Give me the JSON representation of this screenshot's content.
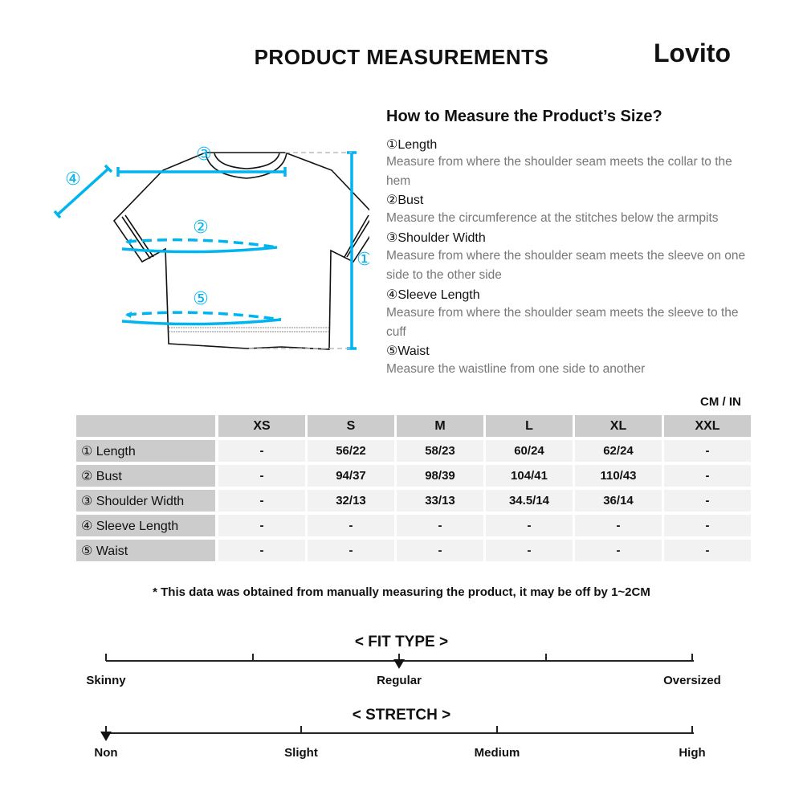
{
  "header": {
    "title": "PRODUCT MEASUREMENTS",
    "logo": "Lovito"
  },
  "guide": {
    "heading": "How to Measure the Product’s Size?",
    "items": [
      {
        "title": "①Length",
        "desc": "Measure from where the shoulder seam meets the collar to the hem"
      },
      {
        "title": "②Bust",
        "desc": "Measure the circumference at the stitches below the armpits"
      },
      {
        "title": "③Shoulder Width",
        "desc": "Measure from where the shoulder seam meets the sleeve on one side to the other side"
      },
      {
        "title": "④Sleeve Length",
        "desc": "Measure from where the shoulder seam meets the sleeve to the cuff"
      },
      {
        "title": "⑤Waist",
        "desc": "Measure the waistline from one side to another"
      }
    ]
  },
  "diagram": {
    "labels": [
      "①",
      "②",
      "③",
      "④",
      "⑤"
    ],
    "accent": "#00b4f0"
  },
  "table": {
    "units": "CM / IN",
    "sizes": [
      "XS",
      "S",
      "M",
      "L",
      "XL",
      "XXL"
    ],
    "rows": [
      {
        "label": "① Length",
        "values": [
          "-",
          "56/22",
          "58/23",
          "60/24",
          "62/24",
          "-"
        ]
      },
      {
        "label": "② Bust",
        "values": [
          "-",
          "94/37",
          "98/39",
          "104/41",
          "110/43",
          "-"
        ]
      },
      {
        "label": "③ Shoulder Width",
        "values": [
          "-",
          "32/13",
          "33/13",
          "34.5/14",
          "36/14",
          "-"
        ]
      },
      {
        "label": "④ Sleeve Length",
        "values": [
          "-",
          "-",
          "-",
          "-",
          "-",
          "-"
        ]
      },
      {
        "label": "⑤ Waist",
        "values": [
          "-",
          "-",
          "-",
          "-",
          "-",
          "-"
        ]
      }
    ]
  },
  "note": "* This data was obtained from manually measuring the product, it may be off by 1~2CM",
  "fit": {
    "title": "< FIT TYPE >",
    "labels": [
      "Skinny",
      "Regular",
      "Oversized"
    ],
    "selected": "Regular",
    "position": 0.5
  },
  "stretch": {
    "title": "< STRETCH >",
    "labels": [
      "Non",
      "Slight",
      "Medium",
      "High"
    ],
    "selected": "Non",
    "position": 0
  }
}
